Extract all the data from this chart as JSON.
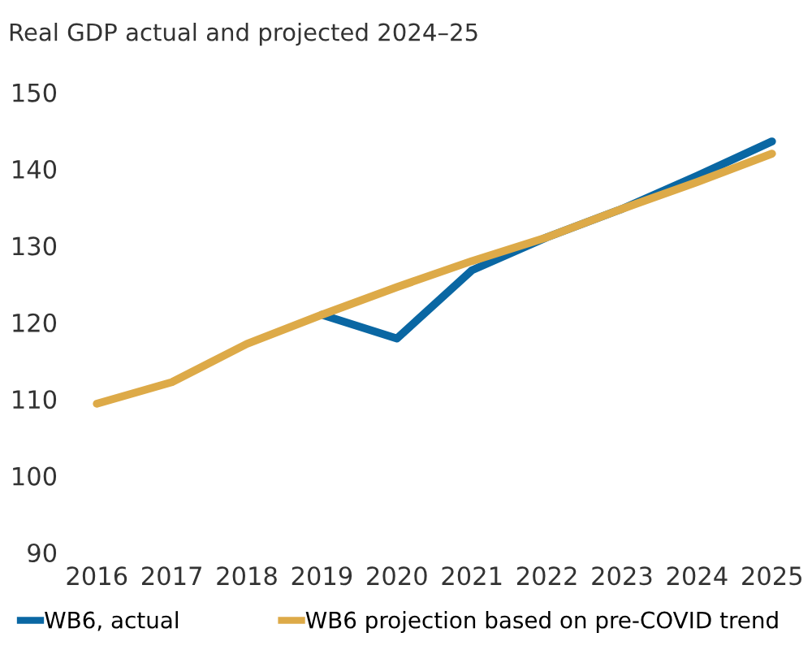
{
  "chart_data": {
    "type": "line",
    "title": "Real GDP actual and projected 2024–25",
    "categories": [
      "2016",
      "2017",
      "2018",
      "2019",
      "2020",
      "2021",
      "2022",
      "2023",
      "2024",
      "2025"
    ],
    "series": [
      {
        "name": "WB6, actual",
        "color": "#0a67a3",
        "values": [
          null,
          null,
          null,
          121.0,
          117.9,
          126.8,
          131.1,
          134.8,
          139.1,
          143.6
        ]
      },
      {
        "name": "WB6 projection based on pre-COVID trend",
        "color": "#ddaa48",
        "values": [
          109.4,
          112.2,
          117.2,
          121.0,
          124.6,
          128.0,
          131.1,
          134.8,
          138.3,
          142.0
        ]
      }
    ],
    "ylim": [
      90,
      150
    ],
    "yticks": [
      90,
      100,
      110,
      120,
      130,
      140,
      150
    ],
    "grid": false,
    "legend": "bottom",
    "marker": "none",
    "line_style": "solid"
  }
}
